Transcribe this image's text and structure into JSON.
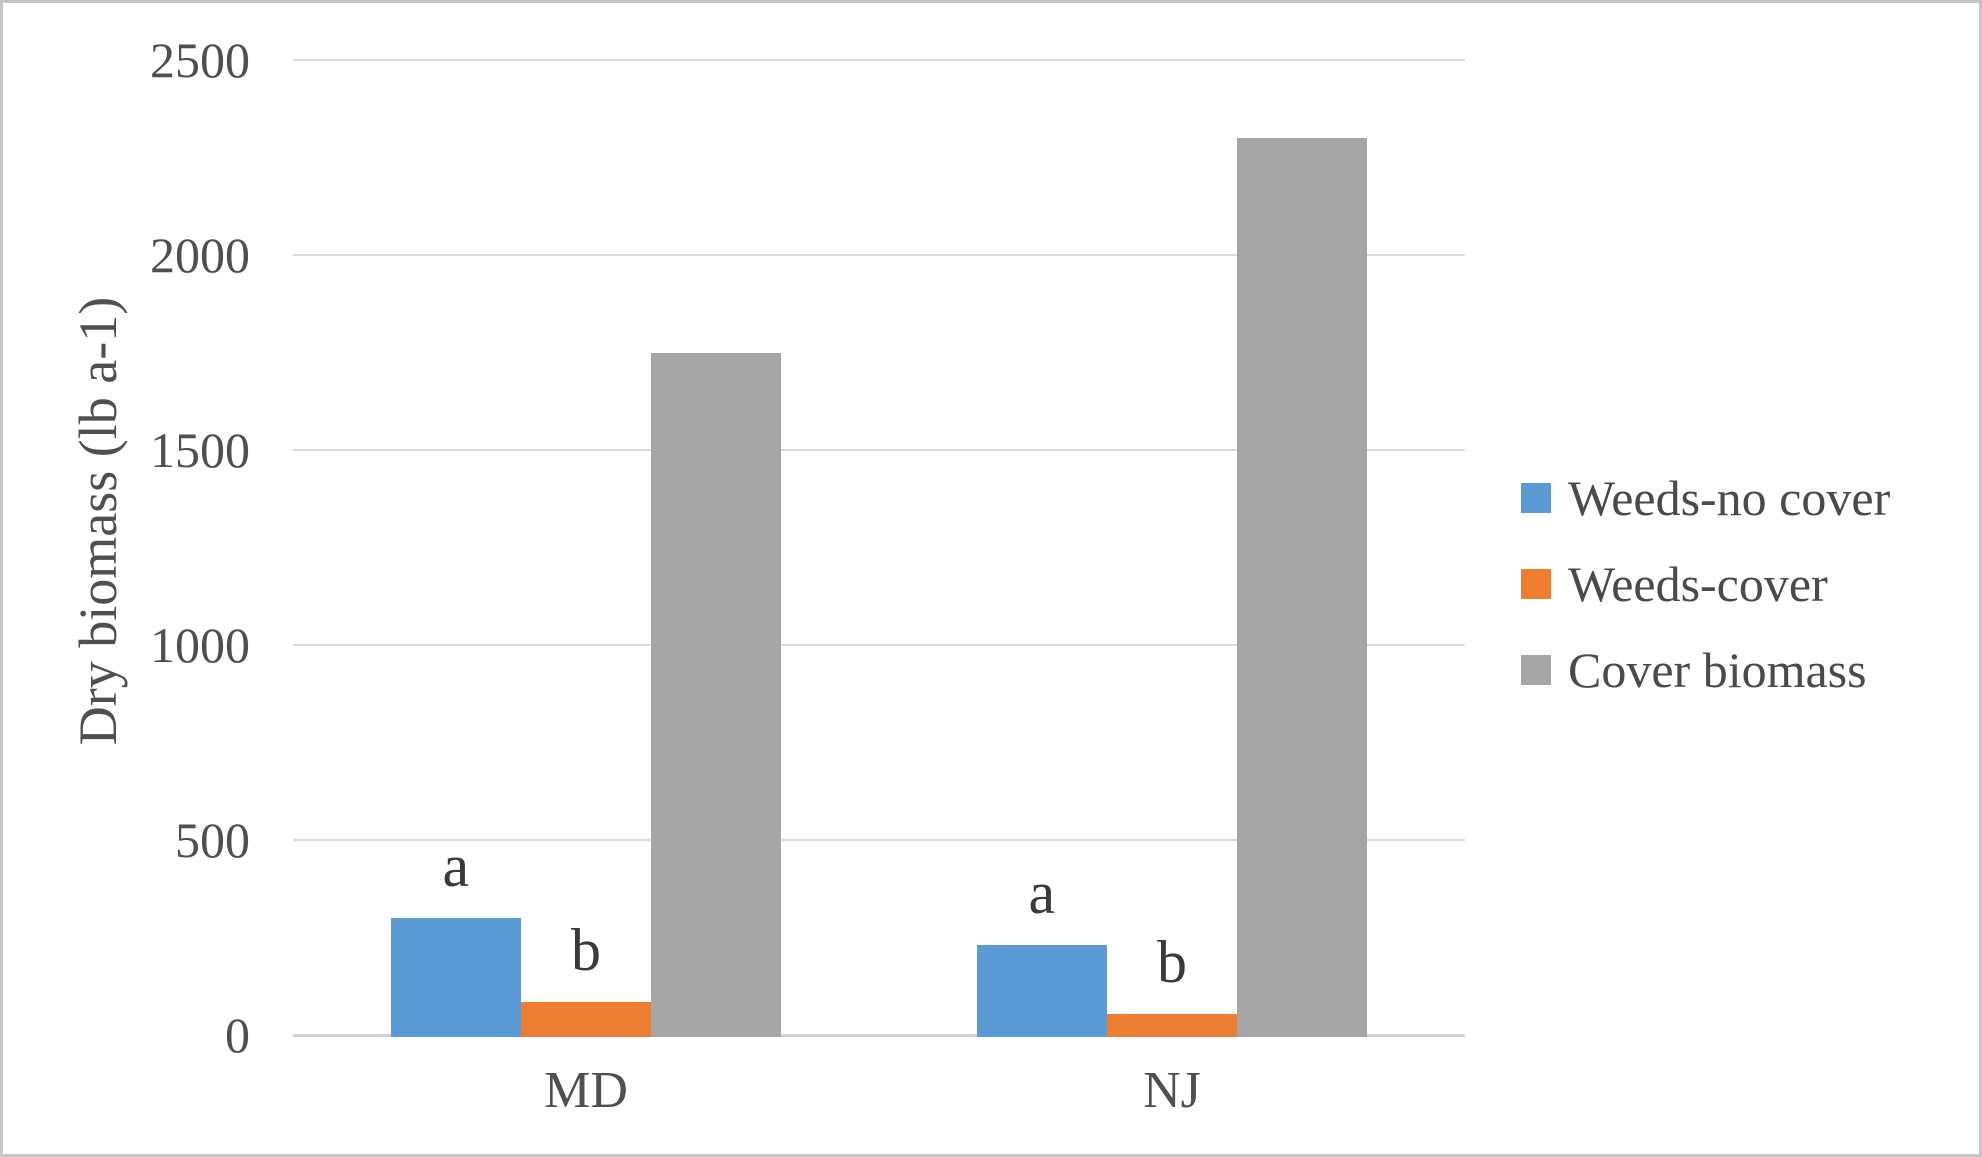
{
  "chart_data": {
    "type": "bar",
    "title": "",
    "xlabel": "",
    "ylabel": "Dry biomass (lb a-1)",
    "categories": [
      "MD",
      "NJ"
    ],
    "series": [
      {
        "name": "Weeds-no cover",
        "color": "#5B9BD5",
        "values": [
          300,
          230
        ]
      },
      {
        "name": "Weeds-cover",
        "color": "#ED7D31",
        "values": [
          85,
          55
        ]
      },
      {
        "name": "Cover biomass",
        "color": "#A5A5A5",
        "values": [
          1750,
          2300
        ]
      }
    ],
    "annotations": [
      {
        "category": "MD",
        "series": "Weeds-no cover",
        "text": "a"
      },
      {
        "category": "MD",
        "series": "Weeds-cover",
        "text": "b"
      },
      {
        "category": "NJ",
        "series": "Weeds-no cover",
        "text": "a"
      },
      {
        "category": "NJ",
        "series": "Weeds-cover",
        "text": "b"
      }
    ],
    "y_axis": {
      "min": 0,
      "max": 2500,
      "tick_step": 500,
      "ticks": [
        0,
        500,
        1000,
        1500,
        2000,
        2500
      ]
    },
    "legend_position": "right",
    "grid": true
  }
}
